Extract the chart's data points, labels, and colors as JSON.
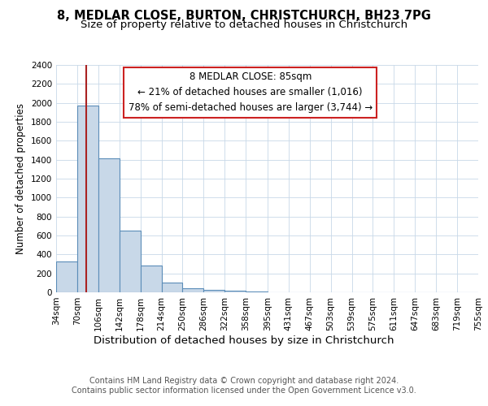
{
  "title": "8, MEDLAR CLOSE, BURTON, CHRISTCHURCH, BH23 7PG",
  "subtitle": "Size of property relative to detached houses in Christchurch",
  "xlabel": "Distribution of detached houses by size in Christchurch",
  "ylabel": "Number of detached properties",
  "bin_edges": [
    34,
    70,
    106,
    142,
    178,
    214,
    250,
    286,
    322,
    358,
    395,
    431,
    467,
    503,
    539,
    575,
    611,
    647,
    683,
    719,
    755
  ],
  "bar_heights": [
    325,
    1975,
    1410,
    650,
    280,
    100,
    45,
    30,
    20,
    5,
    0,
    0,
    0,
    0,
    0,
    0,
    0,
    0,
    0,
    0
  ],
  "bar_color": "#c8d8e8",
  "bar_edge_color": "#5b8db8",
  "bar_linewidth": 0.8,
  "red_line_x": 85,
  "red_line_color": "#aa2222",
  "ylim": [
    0,
    2400
  ],
  "yticks": [
    0,
    200,
    400,
    600,
    800,
    1000,
    1200,
    1400,
    1600,
    1800,
    2000,
    2200,
    2400
  ],
  "annotation_line0": "8 MEDLAR CLOSE: 85sqm",
  "annotation_line1": "← 21% of detached houses are smaller (1,016)",
  "annotation_line2": "78% of semi-detached houses are larger (3,744) →",
  "annotation_box_color": "#ffffff",
  "annotation_box_edge": "#cc2222",
  "grid_color": "#c8d8e8",
  "background_color": "#ffffff",
  "footer1": "Contains HM Land Registry data © Crown copyright and database right 2024.",
  "footer2": "Contains public sector information licensed under the Open Government Licence v3.0.",
  "title_fontsize": 10.5,
  "subtitle_fontsize": 9.5,
  "xlabel_fontsize": 9.5,
  "ylabel_fontsize": 8.5,
  "tick_fontsize": 7.5,
  "annotation_fontsize": 8.5,
  "footer_fontsize": 7.0
}
